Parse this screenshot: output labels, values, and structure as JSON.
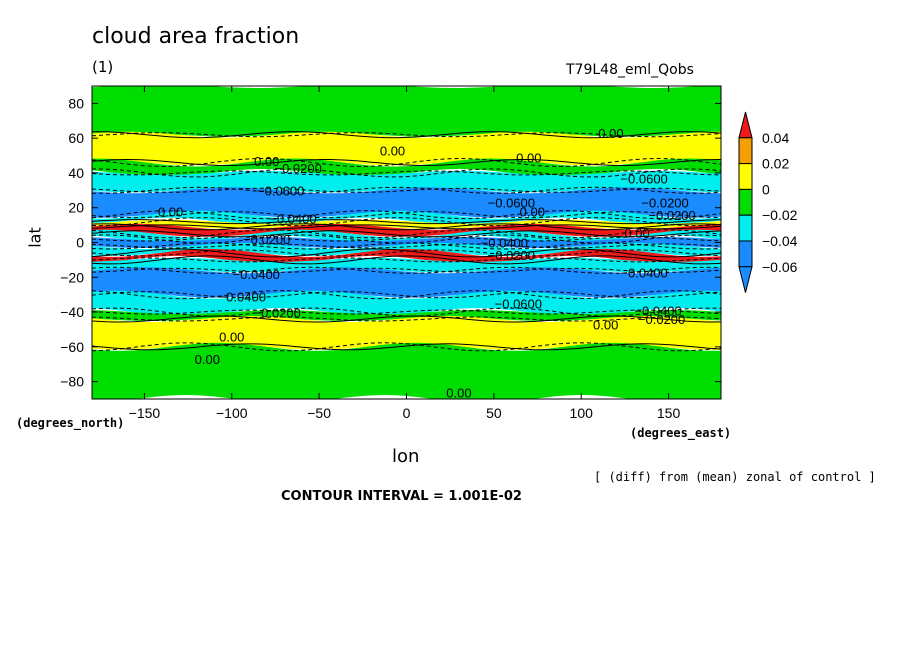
{
  "chart_data": {
    "type": "heatmap",
    "title": "cloud area fraction",
    "subtitle": "(1)",
    "dataset": "T79L48_eml_Qobs",
    "xlabel": "lon",
    "ylabel": "lat",
    "x_units": "(degrees_east)",
    "y_units": "(degrees_north)",
    "xlim": [
      -180,
      180
    ],
    "ylim": [
      -90,
      90
    ],
    "x_ticks": [
      -150,
      -100,
      -50,
      0,
      50,
      100,
      150
    ],
    "y_ticks": [
      80,
      60,
      40,
      20,
      0,
      -20,
      -40,
      -60,
      -80
    ],
    "x_tick_labels": [
      "−150",
      "−100",
      "−50",
      "0",
      "50",
      "100",
      "150"
    ],
    "y_tick_labels": [
      "80",
      "60",
      "40",
      "20",
      "0",
      "−20",
      "−40",
      "−60",
      "−80"
    ],
    "colorbar": {
      "labels": [
        "0.04",
        "0.02",
        "0",
        "−0.02",
        "−0.04",
        "−0.06"
      ],
      "levels": [
        0.04,
        0.02,
        0,
        -0.02,
        -0.04,
        -0.06
      ],
      "colors": [
        "#ee1a1a",
        "#f5a000",
        "#ffff00",
        "#00dd00",
        "#00eeee",
        "#1a8cff",
        "#1a8cff"
      ]
    },
    "lat_bands": [
      {
        "lat": [
          62,
          90
        ],
        "value": -0.01
      },
      {
        "lat": [
          46,
          62
        ],
        "value": 0.01
      },
      {
        "lat": [
          40,
          46
        ],
        "value": -0.01
      },
      {
        "lat": [
          30,
          40
        ],
        "value": -0.03
      },
      {
        "lat": [
          16,
          30
        ],
        "value": -0.07
      },
      {
        "lat": [
          12,
          16
        ],
        "value": -0.03
      },
      {
        "lat": [
          9,
          12
        ],
        "value": 0.01
      },
      {
        "lat": [
          5,
          9
        ],
        "value": 0.05
      },
      {
        "lat": [
          2,
          5
        ],
        "value": -0.03
      },
      {
        "lat": [
          -2,
          2
        ],
        "value": -0.07
      },
      {
        "lat": [
          -6,
          -2
        ],
        "value": -0.03
      },
      {
        "lat": [
          -10,
          -6
        ],
        "value": 0.05
      },
      {
        "lat": [
          -16,
          -10
        ],
        "value": -0.03
      },
      {
        "lat": [
          -30,
          -16
        ],
        "value": -0.07
      },
      {
        "lat": [
          -40,
          -30
        ],
        "value": -0.03
      },
      {
        "lat": [
          -44,
          -40
        ],
        "value": -0.01
      },
      {
        "lat": [
          -60,
          -44
        ],
        "value": 0.01
      },
      {
        "lat": [
          -90,
          -60
        ],
        "value": -0.01
      }
    ],
    "contour_labels": [
      {
        "text": "0.00",
        "lon": 117,
        "lat": 60
      },
      {
        "text": "0.00",
        "lon": -80,
        "lat": 44
      },
      {
        "text": "−0.0200",
        "lon": -62,
        "lat": 40
      },
      {
        "text": "0.00",
        "lon": 70,
        "lat": 46
      },
      {
        "text": "0.00",
        "lon": -8,
        "lat": 50
      },
      {
        "text": "−0.0600",
        "lon": -72,
        "lat": 27
      },
      {
        "text": "−0.0600",
        "lon": 136,
        "lat": 34
      },
      {
        "text": "−0.0600",
        "lon": 60,
        "lat": 20
      },
      {
        "text": "0.00",
        "lon": 72,
        "lat": 15
      },
      {
        "text": "−0.0200",
        "lon": 148,
        "lat": 20
      },
      {
        "text": "−0.0200",
        "lon": 152,
        "lat": 13
      },
      {
        "text": "0.00",
        "lon": -135,
        "lat": 15
      },
      {
        "text": "−0.0400",
        "lon": -65,
        "lat": 11
      },
      {
        "text": "−0.0200",
        "lon": -80,
        "lat": -1
      },
      {
        "text": "−0.0400",
        "lon": 56,
        "lat": -3
      },
      {
        "text": "−0.0200",
        "lon": 60,
        "lat": -10
      },
      {
        "text": "0.00",
        "lon": 132,
        "lat": 3
      },
      {
        "text": "−0.0400",
        "lon": -86,
        "lat": -21
      },
      {
        "text": "−0.0400",
        "lon": 136,
        "lat": -20
      },
      {
        "text": "−0.0400",
        "lon": -94,
        "lat": -34
      },
      {
        "text": "−0.0200",
        "lon": -74,
        "lat": -43
      },
      {
        "text": "−0.0600",
        "lon": 64,
        "lat": -38
      },
      {
        "text": "0.00",
        "lon": 114,
        "lat": -50
      },
      {
        "text": "−0.0400",
        "lon": 144,
        "lat": -42
      },
      {
        "text": "−0.0200",
        "lon": 146,
        "lat": -47
      },
      {
        "text": "0.00",
        "lon": -100,
        "lat": -57
      },
      {
        "text": "0.00",
        "lon": -114,
        "lat": -70
      },
      {
        "text": "0.00",
        "lon": 30,
        "lat": -89
      }
    ]
  },
  "footer": {
    "note": "[ (diff) from (mean) zonal of control ]",
    "contour_interval": "CONTOUR INTERVAL = 1.001E-02"
  }
}
